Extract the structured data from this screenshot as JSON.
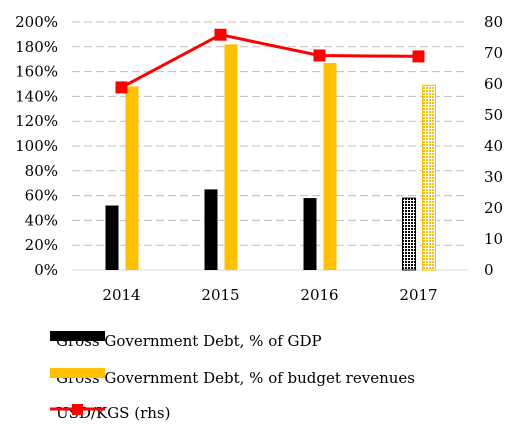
{
  "chart_data": {
    "type": "bar",
    "categories": [
      "2014",
      "2015",
      "2016",
      "2017"
    ],
    "y_left": {
      "ticks": [
        "0%",
        "20%",
        "40%",
        "60%",
        "80%",
        "100%",
        "120%",
        "140%",
        "160%",
        "180%",
        "200%"
      ],
      "lim": [
        0,
        200
      ]
    },
    "y_right": {
      "ticks": [
        "0",
        "10",
        "20",
        "30",
        "40",
        "50",
        "60",
        "70",
        "80"
      ],
      "lim": [
        0,
        80
      ]
    },
    "series": [
      {
        "name": "Gross Government Debt, % of GDP",
        "type": "bar",
        "axis": "left",
        "values": [
          52,
          65,
          58,
          58
        ],
        "color": "#000000",
        "last_point_style": "dotted-forecast"
      },
      {
        "name": "Gross Government Debt, % of  budget revenues",
        "type": "bar",
        "axis": "left",
        "values": [
          148,
          182,
          167,
          149
        ],
        "color": "#FFC000",
        "last_point_style": "dotted-forecast"
      },
      {
        "name": "USD/KGS (rhs)",
        "type": "line",
        "axis": "right",
        "values": [
          58.9,
          75.9,
          69.2,
          68.9
        ],
        "color": "#FF0000",
        "marker": "square"
      }
    ],
    "grid": "horizontal-dashed",
    "legend": "bottom"
  }
}
